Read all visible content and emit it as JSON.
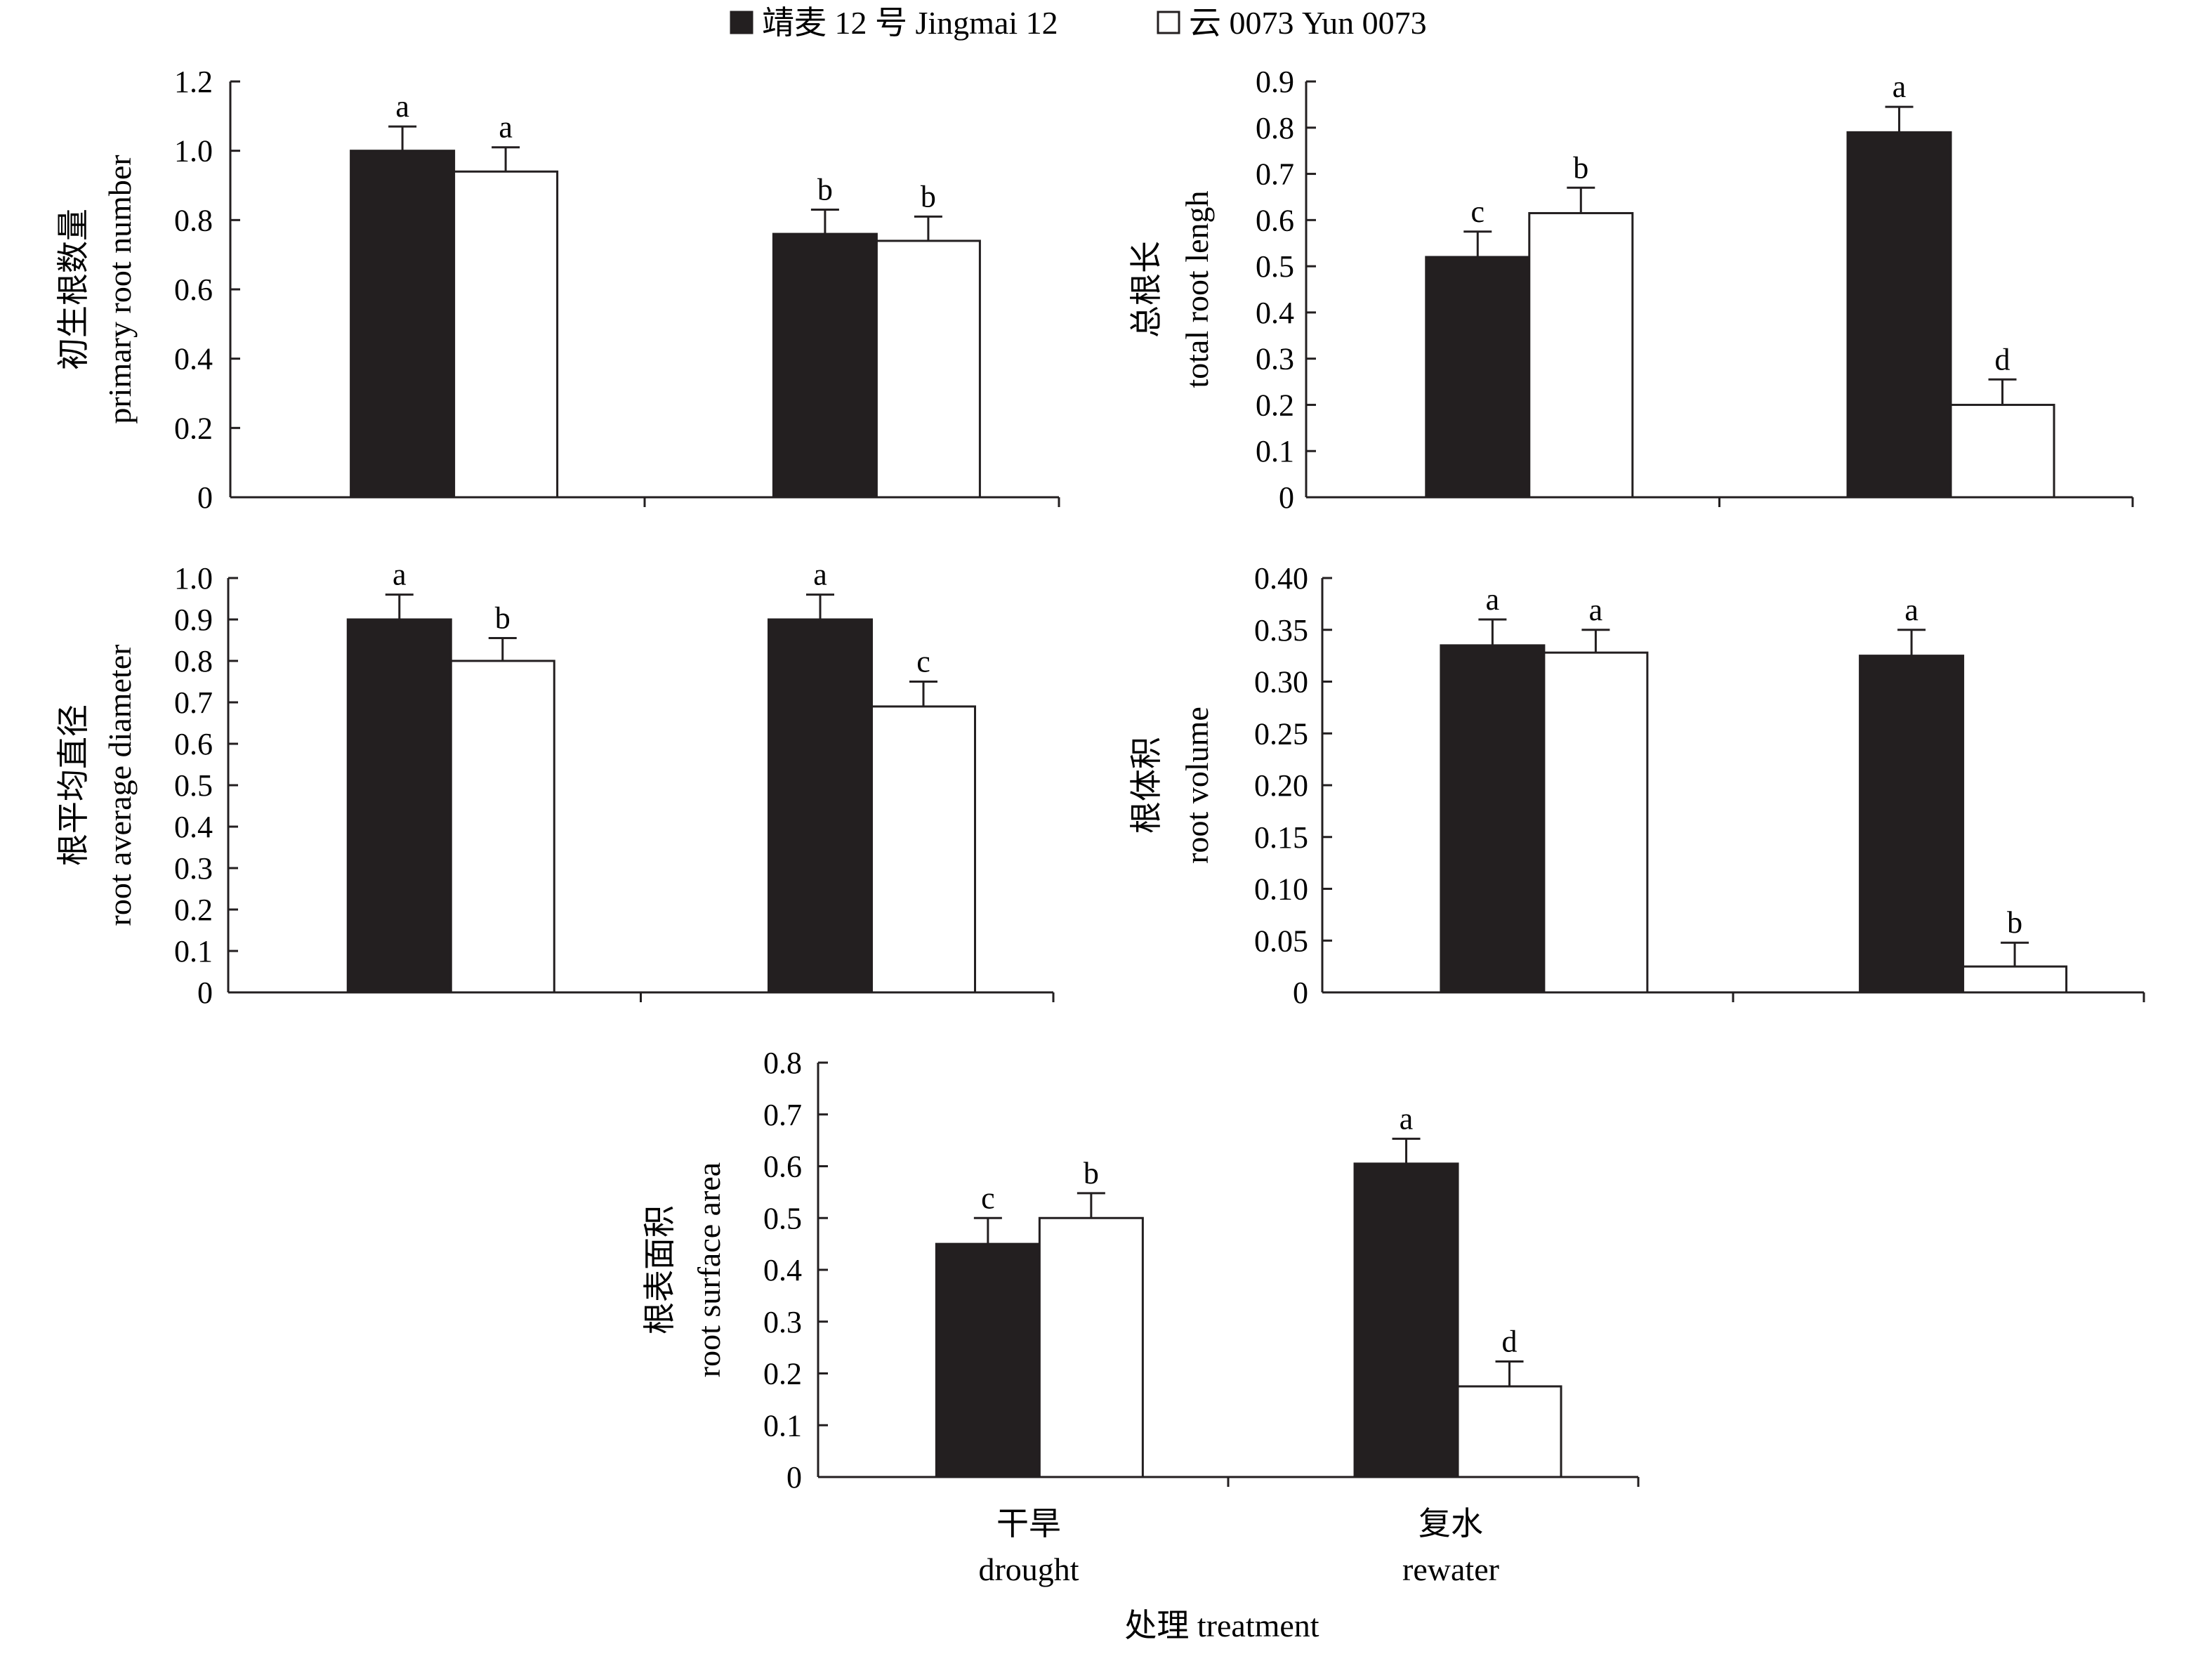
{
  "legend": {
    "items": [
      {
        "label": "靖麦 12 号 Jingmai 12",
        "fill": "#231f20"
      },
      {
        "label": "云 0073 Yun 0073",
        "fill": "#ffffff"
      }
    ]
  },
  "x_axis": {
    "categories_cn": [
      "干旱",
      "复水"
    ],
    "categories_en": [
      "drought",
      "rewater"
    ],
    "title": "处理 treatment"
  },
  "chart_data": [
    {
      "type": "bar",
      "title": "",
      "ylabel_cn": "初生根数量",
      "ylabel_en": "primary root number",
      "categories": [
        "drought",
        "rewater"
      ],
      "ylim": [
        0,
        1.2
      ],
      "yticks": [
        "0",
        "0.2",
        "0.4",
        "0.6",
        "0.8",
        "1.0",
        "1.2"
      ],
      "series": [
        {
          "name": "靖麦 12 号 Jingmai 12",
          "values": [
            1.0,
            0.76
          ],
          "errors": [
            0.07,
            0.07
          ],
          "letters": [
            "a",
            "b"
          ]
        },
        {
          "name": "云 0073 Yun 0073",
          "values": [
            0.94,
            0.74
          ],
          "errors": [
            0.07,
            0.07
          ],
          "letters": [
            "a",
            "b"
          ]
        }
      ]
    },
    {
      "type": "bar",
      "title": "",
      "ylabel_cn": "总根长",
      "ylabel_en": "total root lengh",
      "categories": [
        "drought",
        "rewater"
      ],
      "ylim": [
        0,
        0.9
      ],
      "yticks": [
        "0",
        "0.1",
        "0.2",
        "0.3",
        "0.4",
        "0.5",
        "0.6",
        "0.7",
        "0.8",
        "0.9"
      ],
      "series": [
        {
          "name": "靖麦 12 号 Jingmai 12",
          "values": [
            0.52,
            0.79
          ],
          "errors": [
            0.055,
            0.055
          ],
          "letters": [
            "c",
            "a"
          ]
        },
        {
          "name": "云 0073 Yun 0073",
          "values": [
            0.615,
            0.2
          ],
          "errors": [
            0.055,
            0.055
          ],
          "letters": [
            "b",
            "d"
          ]
        }
      ]
    },
    {
      "type": "bar",
      "title": "",
      "ylabel_cn": "根平均直径",
      "ylabel_en": "root average diameter",
      "categories": [
        "drought",
        "rewater"
      ],
      "ylim": [
        0,
        1.0
      ],
      "yticks": [
        "0",
        "0.1",
        "0.2",
        "0.3",
        "0.4",
        "0.5",
        "0.6",
        "0.7",
        "0.8",
        "0.9",
        "1.0"
      ],
      "series": [
        {
          "name": "靖麦 12 号 Jingmai 12",
          "values": [
            0.9,
            0.9
          ],
          "errors": [
            0.06,
            0.06
          ],
          "letters": [
            "a",
            "a"
          ]
        },
        {
          "name": "云 0073 Yun 0073",
          "values": [
            0.8,
            0.69
          ],
          "errors": [
            0.055,
            0.06
          ],
          "letters": [
            "b",
            "c"
          ]
        }
      ]
    },
    {
      "type": "bar",
      "title": "",
      "ylabel_cn": "根体积",
      "ylabel_en": "root volume",
      "categories": [
        "drought",
        "rewater"
      ],
      "ylim": [
        0,
        0.4
      ],
      "yticks": [
        "0",
        "0.05",
        "0.10",
        "0.15",
        "0.20",
        "0.25",
        "0.30",
        "0.35",
        "0.40"
      ],
      "series": [
        {
          "name": "靖麦 12 号 Jingmai 12",
          "values": [
            0.335,
            0.325
          ],
          "errors": [
            0.025,
            0.025
          ],
          "letters": [
            "a",
            "a"
          ]
        },
        {
          "name": "云 0073 Yun 0073",
          "values": [
            0.328,
            0.025
          ],
          "errors": [
            0.022,
            0.023
          ],
          "letters": [
            "a",
            "b"
          ]
        }
      ]
    },
    {
      "type": "bar",
      "title": "",
      "ylabel_cn": "根表面积",
      "ylabel_en": "root surface area",
      "categories": [
        "drought",
        "rewater"
      ],
      "ylim": [
        0,
        0.8
      ],
      "yticks": [
        "0",
        "0.1",
        "0.2",
        "0.3",
        "0.4",
        "0.5",
        "0.6",
        "0.7",
        "0.8"
      ],
      "series": [
        {
          "name": "靖麦 12 号 Jingmai 12",
          "values": [
            0.45,
            0.605
          ],
          "errors": [
            0.05,
            0.048
          ],
          "letters": [
            "c",
            "a"
          ]
        },
        {
          "name": "云 0073 Yun 0073",
          "values": [
            0.5,
            0.175
          ],
          "errors": [
            0.048,
            0.048
          ],
          "letters": [
            "b",
            "d"
          ]
        }
      ]
    }
  ]
}
